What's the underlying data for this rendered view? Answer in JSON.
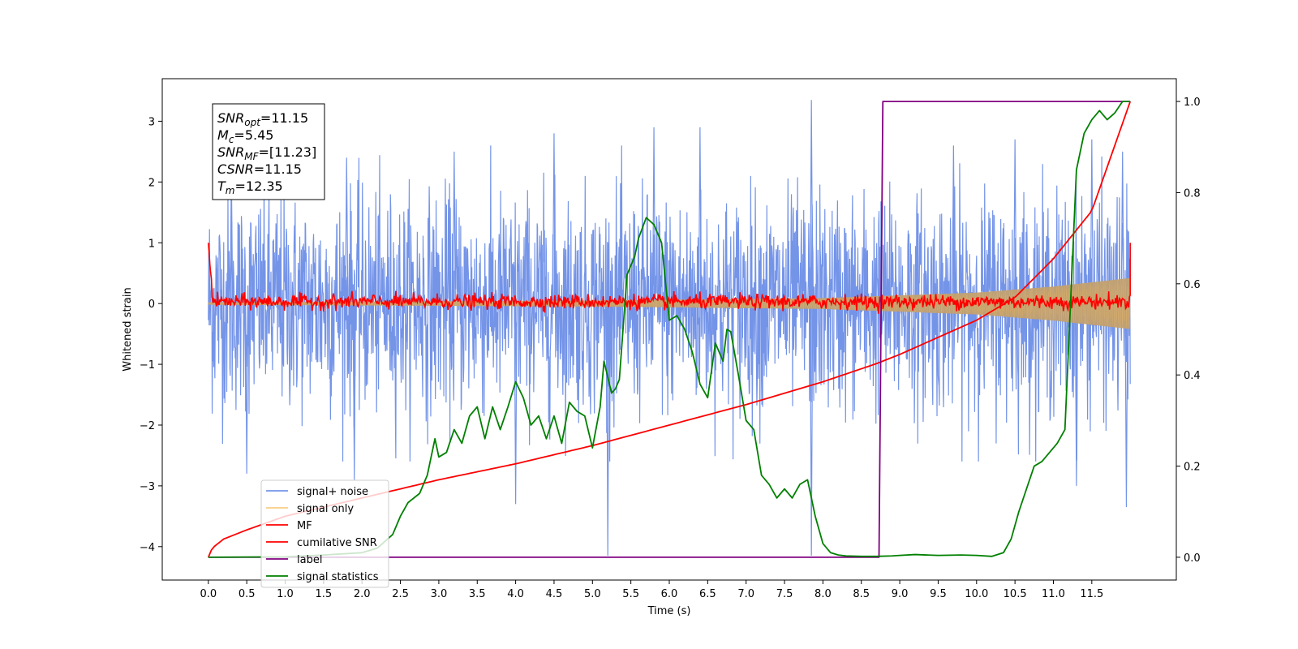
{
  "chart_data": {
    "type": "line",
    "xlabel": "Time (s)",
    "ylabel": "Whitened strain",
    "xlim": [
      -0.6,
      12.6
    ],
    "ylim": [
      -4.55,
      3.7
    ],
    "y2lim": [
      -0.05,
      1.05
    ],
    "x_ticks": [
      "0.0",
      "0.5",
      "1.0",
      "1.5",
      "2.0",
      "2.5",
      "3.0",
      "3.5",
      "4.0",
      "4.5",
      "5.0",
      "5.5",
      "6.0",
      "6.5",
      "7.0",
      "7.5",
      "8.0",
      "8.5",
      "9.0",
      "9.5",
      "10.0",
      "10.5",
      "11.0",
      "11.5"
    ],
    "x_tick_values": [
      0,
      0.5,
      1,
      1.5,
      2,
      2.5,
      3,
      3.5,
      4,
      4.5,
      5,
      5.5,
      6,
      6.5,
      7,
      7.5,
      8,
      8.5,
      9,
      9.5,
      10,
      10.5,
      11,
      11.5
    ],
    "y_ticks": [
      "3",
      "2",
      "1",
      "0",
      "−1",
      "−2",
      "−3",
      "−4"
    ],
    "y_tick_values": [
      3,
      2,
      1,
      0,
      -1,
      -2,
      -3,
      -4
    ],
    "y2_ticks": [
      "1.0",
      "0.8",
      "0.6",
      "0.4",
      "0.2",
      "0.0"
    ],
    "y2_tick_values": [
      1.0,
      0.8,
      0.6,
      0.4,
      0.2,
      0.0
    ],
    "colors": {
      "noise": "#7494e8",
      "signal": "#f5b952",
      "envelope": "#c2a070",
      "mf": "#ff0000",
      "csnr": "#ff0000",
      "label": "#800080",
      "stats": "#008000"
    },
    "legend": {
      "placement": "lower-left",
      "entries": [
        {
          "key": "noise",
          "label": "signal+ noise"
        },
        {
          "key": "signal",
          "label": "signal only"
        },
        {
          "key": "mf",
          "label": "MF"
        },
        {
          "key": "csnr",
          "label": "cumilative SNR"
        },
        {
          "key": "label",
          "label": "label"
        },
        {
          "key": "stats",
          "label": "signal statistics"
        }
      ]
    },
    "info_box": [
      {
        "sym": "SNR",
        "sub": "opt",
        "val": "=11.15"
      },
      {
        "sym": "M",
        "sub": "c",
        "val": "=5.45"
      },
      {
        "sym": "SNR",
        "sub": "MF",
        "val": "=[11.23]"
      },
      {
        "sym": "CSNR",
        "sub": "",
        "val": "=11.15"
      },
      {
        "sym": "T",
        "sub": "m",
        "val": "=12.35"
      }
    ],
    "series": [
      {
        "name": "signal+ noise",
        "axis": "left",
        "x_range": [
          0,
          12.0
        ],
        "value_range": [
          -4.15,
          3.35
        ],
        "typical_band": [
          -1.6,
          1.6
        ],
        "peaks": [
          [
            0.3,
            2.2
          ],
          [
            1.8,
            2.4
          ],
          [
            3.2,
            2.5
          ],
          [
            4.5,
            2.8
          ],
          [
            5.8,
            2.9
          ],
          [
            6.4,
            2.9
          ],
          [
            7.85,
            3.35
          ],
          [
            9.7,
            2.6
          ],
          [
            10.5,
            2.7
          ],
          [
            11.5,
            2.7
          ],
          [
            11.9,
            2.5
          ]
        ],
        "troughs": [
          [
            0.5,
            -2.8
          ],
          [
            1.9,
            -2.9
          ],
          [
            4.0,
            -3.3
          ],
          [
            5.2,
            -4.15
          ],
          [
            7.85,
            -4.15
          ],
          [
            11.3,
            -3.0
          ],
          [
            11.95,
            -3.35
          ]
        ]
      },
      {
        "name": "signal only",
        "axis": "left",
        "x_range": [
          0,
          12.0
        ],
        "amplitude_envelope": [
          [
            0,
            0.02
          ],
          [
            5.0,
            0.05
          ],
          [
            8.0,
            0.09
          ],
          [
            10.0,
            0.18
          ],
          [
            11.0,
            0.28
          ],
          [
            12.0,
            0.42
          ]
        ]
      },
      {
        "name": "MF",
        "axis": "left",
        "x_range": [
          0,
          12.0
        ],
        "start_value": 1.0,
        "end_value": 1.0,
        "typical_band": [
          -0.15,
          0.25
        ]
      },
      {
        "name": "cumilative SNR",
        "axis": "right",
        "x": [
          0,
          0.05,
          0.2,
          0.5,
          1,
          1.5,
          2,
          3,
          4,
          5,
          6,
          7,
          8,
          8.7,
          9,
          10,
          10.5,
          11,
          11.5,
          12
        ],
        "y": [
          0,
          0.02,
          0.04,
          0.06,
          0.09,
          0.11,
          0.13,
          0.17,
          0.205,
          0.245,
          0.29,
          0.335,
          0.385,
          0.425,
          0.445,
          0.52,
          0.57,
          0.655,
          0.76,
          1.0
        ]
      },
      {
        "name": "label",
        "axis": "right",
        "x": [
          0,
          8.73,
          8.78,
          12.0
        ],
        "y": [
          0,
          0,
          1,
          1
        ]
      },
      {
        "name": "signal statistics",
        "axis": "right",
        "x": [
          0,
          0.5,
          1,
          1.5,
          2,
          2.2,
          2.4,
          2.5,
          2.6,
          2.75,
          2.85,
          2.95,
          3.0,
          3.1,
          3.2,
          3.3,
          3.4,
          3.5,
          3.6,
          3.7,
          3.8,
          3.9,
          4.0,
          4.1,
          4.2,
          4.3,
          4.4,
          4.5,
          4.6,
          4.7,
          4.8,
          4.9,
          5.0,
          5.1,
          5.15,
          5.25,
          5.3,
          5.35,
          5.45,
          5.5,
          5.55,
          5.6,
          5.7,
          5.8,
          5.9,
          6.0,
          6.1,
          6.2,
          6.3,
          6.4,
          6.5,
          6.6,
          6.7,
          6.75,
          6.8,
          6.9,
          7.0,
          7.1,
          7.2,
          7.3,
          7.4,
          7.5,
          7.6,
          7.7,
          7.8,
          7.9,
          8.0,
          8.1,
          8.2,
          8.3,
          8.5,
          8.7,
          8.9,
          9.0,
          9.2,
          9.5,
          9.8,
          10.0,
          10.2,
          10.35,
          10.45,
          10.55,
          10.65,
          10.75,
          10.85,
          10.95,
          11.05,
          11.15,
          11.3,
          11.4,
          11.5,
          11.6,
          11.7,
          11.8,
          11.9,
          12.0
        ],
        "y": [
          0,
          0.0005,
          0.001,
          0.005,
          0.01,
          0.02,
          0.05,
          0.09,
          0.12,
          0.14,
          0.18,
          0.26,
          0.22,
          0.23,
          0.28,
          0.25,
          0.31,
          0.33,
          0.26,
          0.33,
          0.28,
          0.33,
          0.385,
          0.35,
          0.29,
          0.31,
          0.26,
          0.31,
          0.25,
          0.34,
          0.32,
          0.31,
          0.24,
          0.33,
          0.43,
          0.36,
          0.37,
          0.39,
          0.62,
          0.64,
          0.66,
          0.7,
          0.745,
          0.73,
          0.69,
          0.52,
          0.53,
          0.5,
          0.45,
          0.38,
          0.35,
          0.47,
          0.43,
          0.5,
          0.495,
          0.4,
          0.3,
          0.28,
          0.18,
          0.16,
          0.13,
          0.15,
          0.13,
          0.16,
          0.17,
          0.09,
          0.03,
          0.01,
          0.005,
          0.003,
          0.002,
          0.002,
          0.003,
          0.004,
          0.006,
          0.004,
          0.005,
          0.004,
          0.002,
          0.01,
          0.04,
          0.1,
          0.15,
          0.2,
          0.21,
          0.23,
          0.25,
          0.28,
          0.85,
          0.93,
          0.96,
          0.98,
          0.96,
          0.975,
          1.0,
          1.0
        ]
      }
    ]
  }
}
